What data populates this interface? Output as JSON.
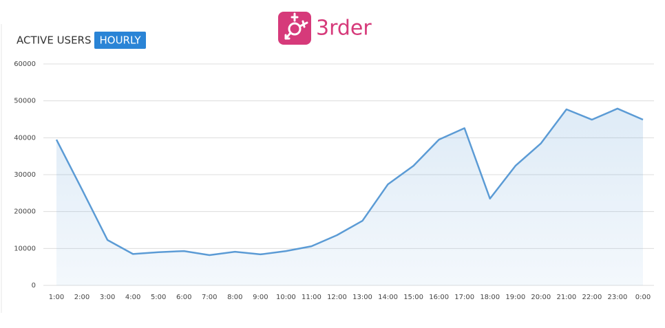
{
  "logo": {
    "text": "3rder"
  },
  "chart_data": {
    "type": "line",
    "title": "ACTIVE USERS",
    "subtitle": "HOURLY",
    "categories": [
      "1:00",
      "2:00",
      "3:00",
      "4:00",
      "5:00",
      "6:00",
      "7:00",
      "8:00",
      "9:00",
      "10:00",
      "11:00",
      "12:00",
      "13:00",
      "14:00",
      "15:00",
      "16:00",
      "17:00",
      "18:00",
      "19:00",
      "20:00",
      "21:00",
      "22:00",
      "23:00",
      "0:00"
    ],
    "series": [
      {
        "name": "Active users",
        "color": "#5b9bd5",
        "values": [
          39500,
          26000,
          12300,
          8500,
          9000,
          9300,
          8200,
          9100,
          8400,
          9300,
          10600,
          13600,
          17500,
          27400,
          32400,
          39500,
          42600,
          23500,
          32400,
          38500,
          47700,
          44900,
          47900,
          44900
        ]
      }
    ],
    "ylim": [
      0,
      60000
    ],
    "yticks": [
      0,
      10000,
      20000,
      30000,
      40000,
      50000,
      60000
    ],
    "grid": true,
    "area": true
  }
}
